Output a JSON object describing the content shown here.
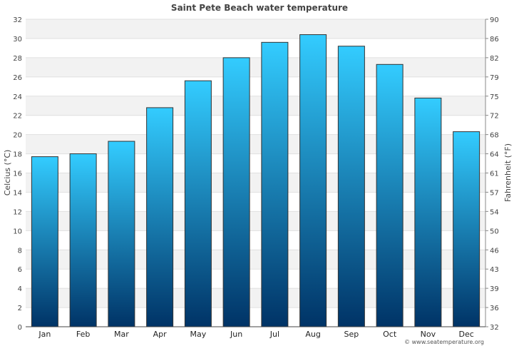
{
  "chart_data": {
    "type": "bar",
    "title": "Saint Pete Beach water temperature",
    "ylabel": "Celcius (°C)",
    "ylabel_right": "Fahrenheit (°F)",
    "categories": [
      "Jan",
      "Feb",
      "Mar",
      "Apr",
      "May",
      "Jun",
      "Jul",
      "Aug",
      "Sep",
      "Oct",
      "Nov",
      "Dec"
    ],
    "values": [
      17.7,
      18.0,
      19.3,
      22.8,
      25.6,
      28.0,
      29.6,
      30.4,
      29.2,
      27.3,
      23.8,
      20.3
    ],
    "ylim": [
      0,
      32
    ],
    "yticks": [
      0,
      2,
      4,
      6,
      8,
      10,
      12,
      14,
      16,
      18,
      20,
      22,
      24,
      26,
      28,
      30,
      32
    ],
    "yticks_right": [
      "32",
      "36",
      "39",
      "43",
      "46",
      "50",
      "54",
      "57",
      "61",
      "64",
      "68",
      "72",
      "75",
      "79",
      "82",
      "86",
      "90"
    ],
    "grid": true,
    "colors": {
      "bar_top": "#33ccff",
      "bar_bottom": "#003366",
      "band": "#f2f2f2"
    }
  },
  "credit": "© www.seatemperature.org"
}
